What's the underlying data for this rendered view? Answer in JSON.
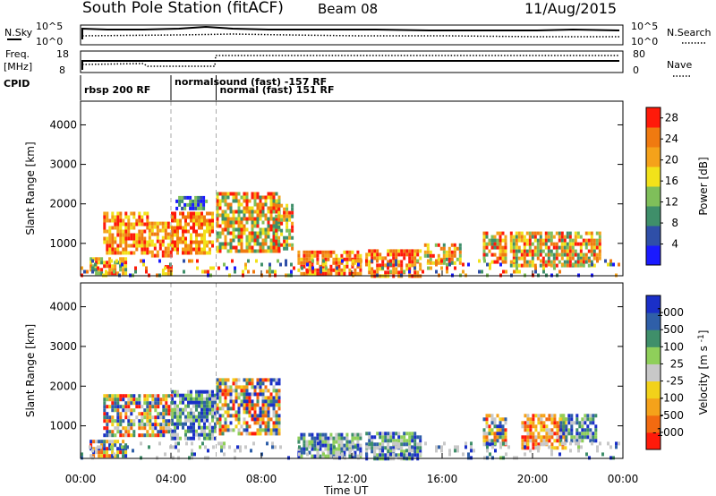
{
  "header": {
    "station": "South Pole Station (fitACF)",
    "beam": "Beam 08",
    "date": "11/Aug/2015"
  },
  "top_panels": {
    "nsky_label": "N.Sky",
    "nsky_left_ticks": [
      "10^5",
      "10^0"
    ],
    "nsearch_label": "N.Search",
    "nsearch_right_ticks": [
      "10^5",
      "10^0"
    ],
    "freq_label": "Freq.",
    "freq_unit": "[MHz]",
    "freq_ticks": [
      "18",
      "8"
    ],
    "nave_label": "Nave",
    "nave_ticks": [
      "80",
      "0"
    ],
    "cpid_label": "CPID",
    "cpid_entries": [
      {
        "text": "rbsp 200 RF",
        "start_hour": 0.0,
        "row": 1
      },
      {
        "text": "normalsound (fast) -157 RF",
        "start_hour": 4.0,
        "row": 0
      },
      {
        "text": "normal (fast) 151 RF",
        "start_hour": 6.0,
        "row": 1
      }
    ],
    "mode_change_hours": [
      4.0,
      6.0
    ]
  },
  "colors": {
    "power_scale": [
      "#1a1aff",
      "#2f4fa8",
      "#3f8f6a",
      "#7fbf5a",
      "#f2e21a",
      "#f5a21a",
      "#f07a10",
      "#ff1a0a"
    ],
    "velocity_scale": [
      "#ff1a0a",
      "#f26a10",
      "#f5a21a",
      "#f2d21a",
      "#c8c8c8",
      "#8fcf5a",
      "#3f8f6a",
      "#2f5fa8",
      "#1a2fc8"
    ]
  },
  "chart_data": [
    {
      "type": "heatmap",
      "name_panel": "power",
      "ylabel": "Slant Range [km]",
      "xlabel": "Time UT",
      "x_ticks": [
        "00:00",
        "04:00",
        "08:00",
        "12:00",
        "16:00",
        "20:00",
        "00:00"
      ],
      "xlim": [
        0,
        24
      ],
      "y_ticks": [
        1000,
        2000,
        3000,
        4000
      ],
      "ylim": [
        180,
        4600
      ],
      "colorbar_label": "Power [dB]",
      "colorbar_ticks": [
        "28",
        "24",
        "20",
        "16",
        "12",
        "8",
        "4"
      ],
      "colorbar_range": [
        0,
        30
      ],
      "regions": [
        {
          "t0": 1.0,
          "t1": 3.0,
          "r0": 750,
          "r1": 1800,
          "level": "high"
        },
        {
          "t0": 3.0,
          "t1": 4.0,
          "r0": 700,
          "r1": 1550,
          "level": "high"
        },
        {
          "t0": 4.0,
          "t1": 5.9,
          "r0": 750,
          "r1": 1800,
          "level": "high"
        },
        {
          "t0": 0.4,
          "t1": 2.0,
          "r0": 250,
          "r1": 650,
          "level": "medium"
        },
        {
          "t0": 3.6,
          "t1": 4.0,
          "r0": 200,
          "r1": 450,
          "level": "high"
        },
        {
          "t0": 4.2,
          "t1": 5.6,
          "r0": 1900,
          "r1": 2200,
          "level": "low"
        },
        {
          "t0": 6.0,
          "t1": 8.8,
          "r0": 800,
          "r1": 2300,
          "level": "medium"
        },
        {
          "t0": 8.6,
          "t1": 9.4,
          "r0": 900,
          "r1": 2000,
          "level": "medium"
        },
        {
          "t0": 9.6,
          "t1": 12.4,
          "r0": 200,
          "r1": 820,
          "level": "high"
        },
        {
          "t0": 12.6,
          "t1": 15.0,
          "r0": 200,
          "r1": 850,
          "level": "high"
        },
        {
          "t0": 15.2,
          "t1": 16.8,
          "r0": 500,
          "r1": 1000,
          "level": "medium"
        },
        {
          "t0": 17.8,
          "t1": 18.8,
          "r0": 500,
          "r1": 1300,
          "level": "medium"
        },
        {
          "t0": 19.0,
          "t1": 23.0,
          "r0": 450,
          "r1": 1300,
          "level": "medium"
        },
        {
          "t0": 0.0,
          "t1": 24.0,
          "r0": 180,
          "r1": 600,
          "level": "scatter"
        }
      ]
    },
    {
      "type": "heatmap",
      "name_panel": "velocity",
      "ylabel": "Slant Range [km]",
      "xlabel": "Time UT",
      "x_ticks": [
        "00:00",
        "04:00",
        "08:00",
        "12:00",
        "16:00",
        "20:00",
        "00:00"
      ],
      "xlim": [
        0,
        24
      ],
      "y_ticks": [
        1000,
        2000,
        3000,
        4000
      ],
      "ylim": [
        180,
        4600
      ],
      "colorbar_label": "Velocity [m s",
      "colorbar_label_sup": "-1",
      "colorbar_label_end": "]",
      "colorbar_ticks": [
        "1000",
        "500",
        "100",
        "25",
        "-25",
        "-100",
        "-500",
        "-1000"
      ],
      "regions": [
        {
          "t0": 1.0,
          "t1": 4.0,
          "r0": 750,
          "r1": 1800,
          "level": "mixed"
        },
        {
          "t0": 4.0,
          "t1": 6.0,
          "r0": 700,
          "r1": 1900,
          "level": "pos"
        },
        {
          "t0": 6.0,
          "t1": 8.8,
          "r0": 800,
          "r1": 2200,
          "level": "mixed"
        },
        {
          "t0": 0.4,
          "t1": 2.0,
          "r0": 250,
          "r1": 650,
          "level": "mixed"
        },
        {
          "t0": 9.6,
          "t1": 12.4,
          "r0": 200,
          "r1": 820,
          "level": "pos"
        },
        {
          "t0": 12.6,
          "t1": 15.0,
          "r0": 200,
          "r1": 850,
          "level": "pos"
        },
        {
          "t0": 17.8,
          "t1": 18.8,
          "r0": 500,
          "r1": 1300,
          "level": "mixed"
        },
        {
          "t0": 19.5,
          "t1": 21.5,
          "r0": 450,
          "r1": 1300,
          "level": "neg"
        },
        {
          "t0": 21.2,
          "t1": 22.8,
          "r0": 600,
          "r1": 1300,
          "level": "pos"
        },
        {
          "t0": 0.0,
          "t1": 24.0,
          "r0": 180,
          "r1": 600,
          "level": "scatter"
        }
      ]
    }
  ]
}
